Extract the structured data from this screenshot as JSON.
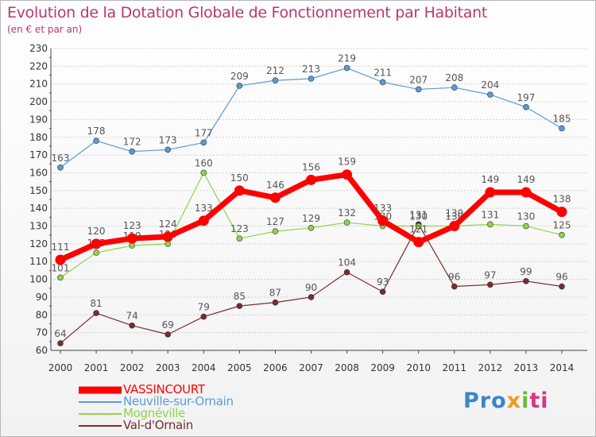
{
  "chart_data": {
    "type": "line",
    "title": "Evolution de la Dotation Globale de Fonctionnement par Habitant",
    "subtitle": "(en € et par an)",
    "xlabel": "",
    "ylabel": "",
    "x": [
      "2000",
      "2001",
      "2002",
      "2003",
      "2004",
      "2005",
      "2006",
      "2007",
      "2008",
      "2009",
      "2010",
      "2011",
      "2012",
      "2013",
      "2014"
    ],
    "ylim": [
      60,
      230
    ],
    "yticks": [
      60,
      70,
      80,
      90,
      100,
      110,
      120,
      130,
      140,
      150,
      160,
      170,
      180,
      190,
      200,
      210,
      220,
      230
    ],
    "grid": "horizontal dashed",
    "legend_position": "bottom-left",
    "series": [
      {
        "name": "VASSINCOURT",
        "color": "#ff0000",
        "values": [
          111,
          120,
          123,
          124,
          133,
          150,
          146,
          156,
          159,
          133,
          121,
          130,
          149,
          149,
          138
        ]
      },
      {
        "name": "Neuville-sur-Ornain",
        "color": "#5b9bd5",
        "values": [
          163,
          178,
          172,
          173,
          177,
          209,
          212,
          213,
          219,
          211,
          207,
          208,
          204,
          197,
          185
        ]
      },
      {
        "name": "Mognéville",
        "color": "#8fd44a",
        "values": [
          101,
          115,
          119,
          120,
          160,
          123,
          127,
          129,
          132,
          130,
          130,
          130,
          131,
          130,
          125
        ]
      },
      {
        "name": "Val-d'Ornain",
        "color": "#7a2c2c",
        "values": [
          64,
          81,
          74,
          69,
          79,
          85,
          87,
          90,
          104,
          93,
          131,
          96,
          97,
          99,
          96
        ]
      }
    ]
  },
  "branding": {
    "logo_parts": [
      "Pro",
      "x",
      "i",
      "ti"
    ]
  }
}
